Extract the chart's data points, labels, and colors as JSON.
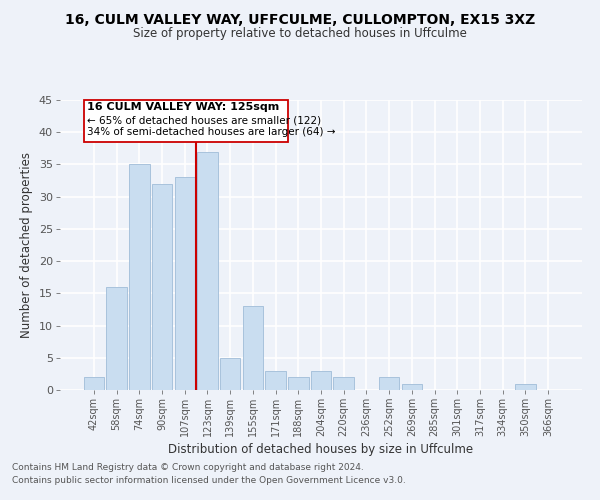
{
  "title": "16, CULM VALLEY WAY, UFFCULME, CULLOMPTON, EX15 3XZ",
  "subtitle": "Size of property relative to detached houses in Uffculme",
  "xlabel": "Distribution of detached houses by size in Uffculme",
  "ylabel": "Number of detached properties",
  "bin_labels": [
    "42sqm",
    "58sqm",
    "74sqm",
    "90sqm",
    "107sqm",
    "123sqm",
    "139sqm",
    "155sqm",
    "171sqm",
    "188sqm",
    "204sqm",
    "220sqm",
    "236sqm",
    "252sqm",
    "269sqm",
    "285sqm",
    "301sqm",
    "317sqm",
    "334sqm",
    "350sqm",
    "366sqm"
  ],
  "bar_values": [
    2,
    16,
    35,
    32,
    33,
    37,
    5,
    13,
    3,
    2,
    3,
    2,
    0,
    2,
    1,
    0,
    0,
    0,
    0,
    1,
    0
  ],
  "bar_color": "#c9ddf0",
  "bar_edgecolor": "#a0bcd8",
  "vline_x_index": 5,
  "vline_color": "#cc0000",
  "ylim": [
    0,
    45
  ],
  "yticks": [
    0,
    5,
    10,
    15,
    20,
    25,
    30,
    35,
    40,
    45
  ],
  "annotation_box_text_line1": "16 CULM VALLEY WAY: 125sqm",
  "annotation_box_text_line2": "← 65% of detached houses are smaller (122)",
  "annotation_box_text_line3": "34% of semi-detached houses are larger (64) →",
  "footer_line1": "Contains HM Land Registry data © Crown copyright and database right 2024.",
  "footer_line2": "Contains public sector information licensed under the Open Government Licence v3.0.",
  "background_color": "#eef2f9"
}
